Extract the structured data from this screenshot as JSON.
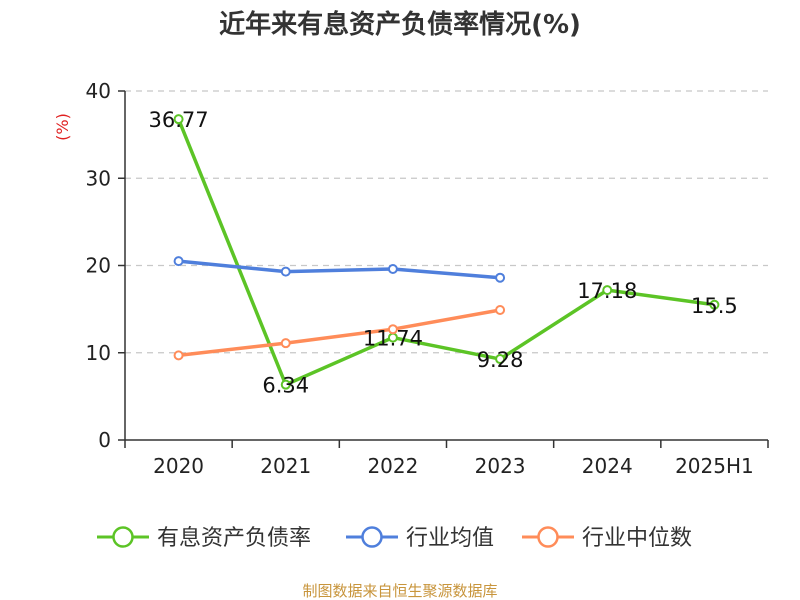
{
  "chart_data": {
    "type": "line",
    "title": "近年来有息资产负债率情况(%)",
    "ylabel": "(%)",
    "categories": [
      "2020",
      "2021",
      "2022",
      "2023",
      "2024",
      "2025H1"
    ],
    "ylim": [
      0,
      40
    ],
    "yticks": [
      0,
      10,
      20,
      30,
      40
    ],
    "grid": true,
    "legend_position": "bottom",
    "series": [
      {
        "name": "有息资产负债率",
        "color": "#5cc426",
        "values": [
          36.77,
          6.34,
          11.74,
          9.28,
          17.18,
          15.5
        ],
        "labels": [
          "36.77",
          "6.34",
          "11.74",
          "9.28",
          "17.18",
          "15.5"
        ]
      },
      {
        "name": "行业均值",
        "color": "#4f7fdc",
        "values": [
          20.5,
          19.3,
          19.6,
          18.6,
          null,
          null
        ]
      },
      {
        "name": "行业中位数",
        "color": "#ff8c59",
        "values": [
          9.7,
          11.1,
          12.7,
          14.9,
          null,
          null
        ]
      }
    ],
    "unit_color": "#e02020",
    "source": "制图数据来自恒生聚源数据库",
    "source_color": "#c8953c"
  }
}
